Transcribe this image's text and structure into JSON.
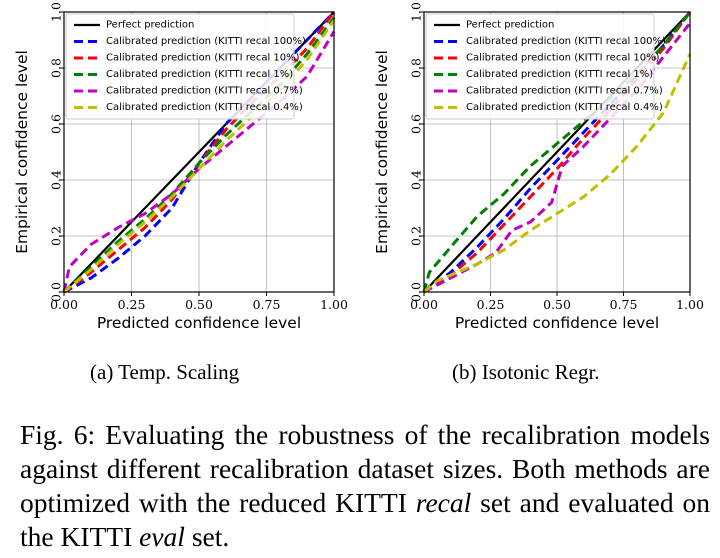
{
  "chart_data": [
    {
      "type": "line",
      "xlabel": "Predicted confidence level",
      "ylabel": "Empirical confidence level",
      "xlim": [
        0,
        1
      ],
      "ylim": [
        0,
        1
      ],
      "xticks": [
        "0.00",
        "0.25",
        "0.50",
        "0.75",
        "1.00"
      ],
      "yticks": [
        "0.0",
        "0.2",
        "0.4",
        "0.6",
        "0.8",
        "1.0"
      ],
      "grid": true,
      "legend_position": "top-left",
      "series": [
        {
          "name": "Perfect prediction",
          "color": "#000000",
          "dash": "solid",
          "x": [
            0,
            1
          ],
          "y": [
            0,
            1
          ]
        },
        {
          "name": "Calibrated prediction (KITTI recal 100%)",
          "color": "#0000ff",
          "dash": "dashed",
          "x": [
            0,
            0.1,
            0.2,
            0.3,
            0.4,
            0.5,
            0.6,
            0.7,
            0.8,
            0.9,
            1.0
          ],
          "y": [
            0,
            0.05,
            0.12,
            0.2,
            0.3,
            0.46,
            0.6,
            0.7,
            0.8,
            0.9,
            1.0
          ]
        },
        {
          "name": "Calibrated prediction (KITTI recal 10%)",
          "color": "#ff0000",
          "dash": "dashed",
          "x": [
            0,
            0.1,
            0.2,
            0.3,
            0.4,
            0.5,
            0.6,
            0.7,
            0.8,
            0.9,
            1.0
          ],
          "y": [
            0,
            0.07,
            0.15,
            0.23,
            0.33,
            0.46,
            0.58,
            0.68,
            0.77,
            0.87,
            1.0
          ]
        },
        {
          "name": "Calibrated prediction (KITTI recal 1%)",
          "color": "#008000",
          "dash": "dashed",
          "x": [
            0,
            0.1,
            0.2,
            0.3,
            0.4,
            0.5,
            0.6,
            0.7,
            0.8,
            0.9,
            1.0
          ],
          "y": [
            0,
            0.09,
            0.18,
            0.26,
            0.35,
            0.46,
            0.56,
            0.65,
            0.74,
            0.85,
            0.98
          ]
        },
        {
          "name": "Calibrated prediction (KITTI recal 0.7%)",
          "color": "#c000c0",
          "dash": "dashed",
          "x": [
            0,
            0.02,
            0.1,
            0.2,
            0.3,
            0.4,
            0.5,
            0.6,
            0.7,
            0.8,
            0.9,
            1.0
          ],
          "y": [
            0,
            0.09,
            0.17,
            0.23,
            0.28,
            0.35,
            0.44,
            0.52,
            0.6,
            0.68,
            0.77,
            0.93
          ]
        },
        {
          "name": "Calibrated prediction (KITTI recal 0.4%)",
          "color": "#bfbf00",
          "dash": "dashed",
          "x": [
            0,
            0.1,
            0.2,
            0.3,
            0.4,
            0.5,
            0.6,
            0.7,
            0.8,
            0.9,
            1.0
          ],
          "y": [
            0,
            0.08,
            0.17,
            0.25,
            0.34,
            0.44,
            0.54,
            0.63,
            0.72,
            0.83,
            0.97
          ]
        }
      ]
    },
    {
      "type": "line",
      "xlabel": "Predicted confidence level",
      "ylabel": "Empirical confidence level",
      "xlim": [
        0,
        1
      ],
      "ylim": [
        0,
        1
      ],
      "xticks": [
        "0.00",
        "0.25",
        "0.50",
        "0.75",
        "1.00"
      ],
      "yticks": [
        "0.0",
        "0.2",
        "0.4",
        "0.6",
        "0.8",
        "1.0"
      ],
      "grid": true,
      "legend_position": "top-left",
      "series": [
        {
          "name": "Perfect prediction",
          "color": "#000000",
          "dash": "solid",
          "x": [
            0,
            1
          ],
          "y": [
            0,
            1
          ]
        },
        {
          "name": "Calibrated prediction (KITTI recal 100%)",
          "color": "#0000ff",
          "dash": "dashed",
          "x": [
            0,
            0.1,
            0.2,
            0.3,
            0.4,
            0.5,
            0.6,
            0.7,
            0.8,
            0.9,
            1.0
          ],
          "y": [
            0,
            0.07,
            0.16,
            0.26,
            0.37,
            0.47,
            0.57,
            0.67,
            0.77,
            0.88,
            1.0
          ]
        },
        {
          "name": "Calibrated prediction (KITTI recal 10%)",
          "color": "#ff0000",
          "dash": "dashed",
          "x": [
            0,
            0.1,
            0.2,
            0.3,
            0.4,
            0.5,
            0.6,
            0.7,
            0.8,
            0.9,
            1.0
          ],
          "y": [
            0,
            0.06,
            0.14,
            0.24,
            0.34,
            0.44,
            0.55,
            0.65,
            0.76,
            0.87,
            1.0
          ]
        },
        {
          "name": "Calibrated prediction (KITTI recal 1%)",
          "color": "#008000",
          "dash": "dashed",
          "x": [
            0,
            0.02,
            0.1,
            0.2,
            0.3,
            0.4,
            0.5,
            0.6,
            0.7,
            0.8,
            0.9,
            1.0
          ],
          "y": [
            0,
            0.07,
            0.16,
            0.27,
            0.35,
            0.45,
            0.53,
            0.61,
            0.69,
            0.78,
            0.88,
            1.0
          ]
        },
        {
          "name": "Calibrated prediction (KITTI recal 0.7%)",
          "color": "#c000c0",
          "dash": "dashed",
          "x": [
            0,
            0.1,
            0.2,
            0.27,
            0.33,
            0.4,
            0.48,
            0.52,
            0.6,
            0.7,
            0.8,
            0.9,
            1.0
          ],
          "y": [
            0,
            0.05,
            0.1,
            0.14,
            0.22,
            0.25,
            0.32,
            0.45,
            0.52,
            0.62,
            0.72,
            0.84,
            0.96
          ]
        },
        {
          "name": "Calibrated prediction (KITTI recal 0.4%)",
          "color": "#bfbf00",
          "dash": "dashed",
          "x": [
            0,
            0.05,
            0.1,
            0.2,
            0.3,
            0.4,
            0.5,
            0.6,
            0.7,
            0.8,
            0.9,
            1.0
          ],
          "y": [
            0,
            0.04,
            0.06,
            0.1,
            0.15,
            0.22,
            0.28,
            0.34,
            0.42,
            0.52,
            0.64,
            0.85
          ]
        }
      ]
    }
  ],
  "subcaptions": [
    "(a) Temp. Scaling",
    "(b) Isotonic Regr."
  ],
  "caption": {
    "part1": "Fig. 6: Evaluating the robustness of the recalibration models against different recalibration dataset sizes. Both methods are optimized with the reduced KITTI ",
    "em1": "recal",
    "part2": " set and evaluated on the KITTI ",
    "em2": "eval",
    "part3": " set."
  }
}
